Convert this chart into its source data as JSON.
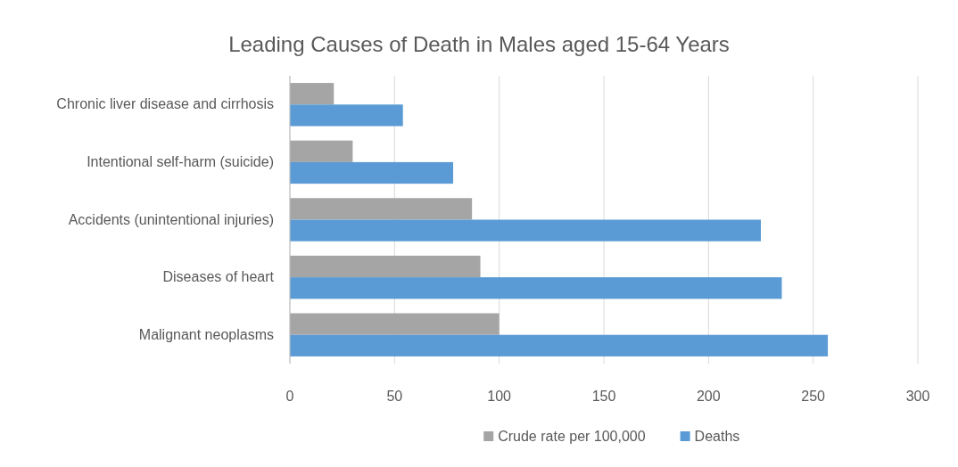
{
  "chart_data": {
    "type": "bar",
    "orientation": "horizontal",
    "title": "Leading Causes of Death in Males aged 15-64 Years",
    "categories": [
      "Chronic liver disease and cirrhosis",
      "Intentional self-harm (suicide)",
      "Accidents (unintentional injuries)",
      "Diseases of heart",
      "Malignant neoplasms"
    ],
    "series": [
      {
        "name": "Crude rate per 100,000",
        "color": "#a5a5a5",
        "values": [
          21,
          30,
          87,
          91,
          100
        ]
      },
      {
        "name": "Deaths",
        "color": "#5b9bd5",
        "values": [
          54,
          78,
          225,
          235,
          257
        ]
      }
    ],
    "xlim": [
      0,
      300
    ],
    "xticks": [
      0,
      50,
      100,
      150,
      200,
      250,
      300
    ],
    "grid": "x",
    "legend": "bottom"
  }
}
